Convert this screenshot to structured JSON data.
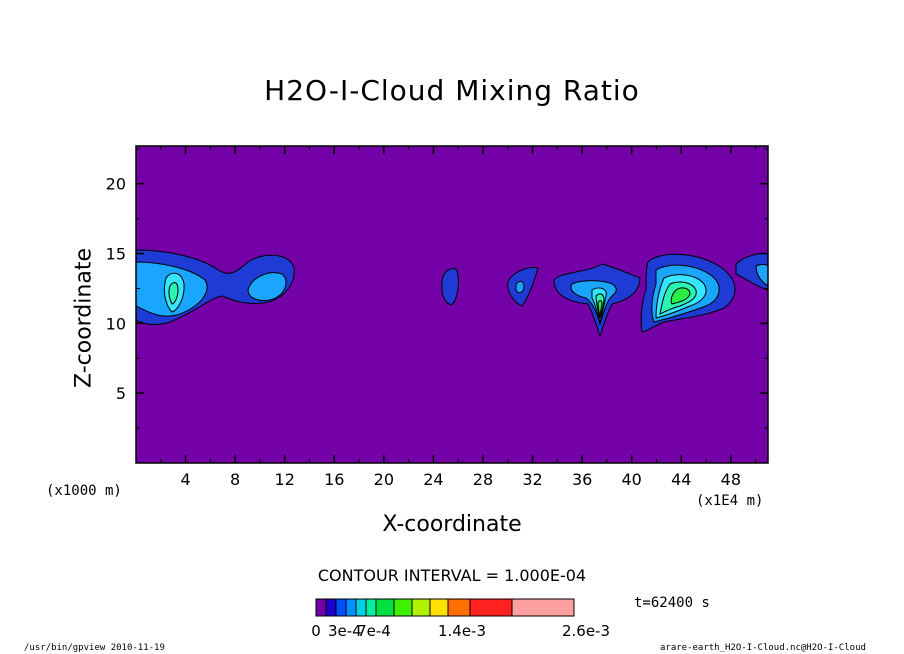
{
  "chart_data": {
    "type": "heatmap",
    "title": "H2O-I-Cloud Mixing Ratio",
    "xlabel": "X-coordinate",
    "ylabel": "Z-coordinate",
    "x_unit_label": "(x1000 m)",
    "x_unit_label_right": "(x1E4 m)",
    "xlim": [
      0,
      51
    ],
    "ylim": [
      0,
      22.7
    ],
    "xticks": [
      "4",
      "8",
      "12",
      "16",
      "20",
      "24",
      "28",
      "32",
      "36",
      "40",
      "44",
      "48"
    ],
    "yticks": [
      "5",
      "10",
      "15",
      "20"
    ],
    "contour_interval": "CONTOUR INTERVAL = 1.000E-04",
    "time": "t=62400 s",
    "background_color": "#7400a8",
    "legend_colors": [
      "#7400a8",
      "#1e00d0",
      "#0050ff",
      "#0090ff",
      "#00d0e0",
      "#00f0a0",
      "#00e040",
      "#40f000",
      "#b0f000",
      "#ffe000",
      "#ff7000",
      "#ff2020",
      "#ffa0a0"
    ],
    "legend_labels": [
      "0",
      "3e-4",
      "7e-4",
      "1.4e-3",
      "2.6e-3"
    ],
    "level_colors": [
      "#7400a8",
      "#1e3bd6",
      "#1aa6ff",
      "#36e6ff",
      "#29f5b0",
      "#29ee49"
    ],
    "features": [
      {
        "x": 0.0,
        "x2": 12.5,
        "z": 12.3,
        "levels": 4
      },
      {
        "x": 24.8,
        "x2": 26.0,
        "z": 12.6,
        "levels": 1
      },
      {
        "x": 30.0,
        "x2": 32.0,
        "z": 12.4,
        "levels": 1
      },
      {
        "x": 34.0,
        "x2": 40.5,
        "z": 12.0,
        "levels": 5
      },
      {
        "x": 41.0,
        "x2": 48.0,
        "z": 12.5,
        "levels": 5
      },
      {
        "x": 48.5,
        "x2": 51.0,
        "z": 13.8,
        "levels": 2
      }
    ]
  },
  "footer": {
    "left": "/usr/bin/gpview  2010-11-19",
    "right": "arare-earth_H2O-I-Cloud.nc@H2O-I-Cloud"
  }
}
